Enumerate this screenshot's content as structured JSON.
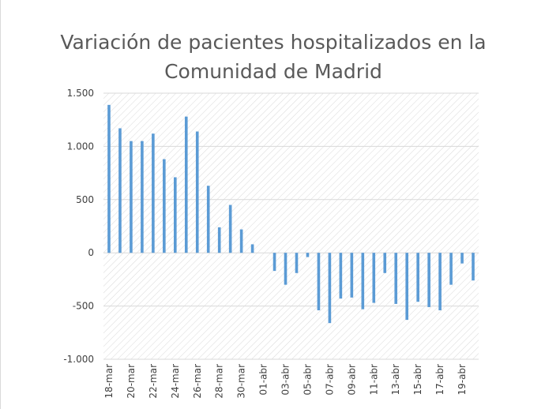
{
  "chart_data": {
    "type": "bar",
    "title_lines": [
      "Variación de pacientes hospitalizados en la",
      "Comunidad de  Madrid"
    ],
    "categories": [
      "18-mar",
      "19-mar",
      "20-mar",
      "21-mar",
      "22-mar",
      "23-mar",
      "24-mar",
      "25-mar",
      "26-mar",
      "27-mar",
      "28-mar",
      "29-mar",
      "30-mar",
      "31-mar",
      "01-abr",
      "02-abr",
      "03-abr",
      "04-abr",
      "05-abr",
      "06-abr",
      "07-abr",
      "08-abr",
      "09-abr",
      "10-abr",
      "11-abr",
      "12-abr",
      "13-abr",
      "14-abr",
      "15-abr",
      "16-abr",
      "17-abr",
      "18-abr",
      "19-abr",
      "20-abr"
    ],
    "visible_tick_labels": [
      "18-mar",
      "20-mar",
      "22-mar",
      "24-mar",
      "26-mar",
      "28-mar",
      "30-mar",
      "01-abr",
      "03-abr",
      "05-abr",
      "07-abr",
      "09-abr",
      "11-abr",
      "13-abr",
      "15-abr",
      "17-abr",
      "19-abr"
    ],
    "values": [
      1390,
      1170,
      1050,
      1050,
      1120,
      880,
      710,
      1280,
      1140,
      630,
      240,
      450,
      220,
      80,
      0,
      -170,
      -300,
      -190,
      -40,
      -540,
      -660,
      -430,
      -420,
      -530,
      -470,
      -190,
      -480,
      -630,
      -460,
      -510,
      -540,
      -300,
      -100,
      -260
    ],
    "ylim": [
      -1000,
      1500
    ],
    "yticks": [
      1500,
      1000,
      500,
      0,
      -500,
      -1000
    ],
    "ytick_labels": [
      "1.500",
      "1.000",
      "500",
      "0",
      "-500",
      "-1.000"
    ],
    "bar_color": "#5b9bd5",
    "grid": true,
    "xlabel": "",
    "ylabel": ""
  }
}
